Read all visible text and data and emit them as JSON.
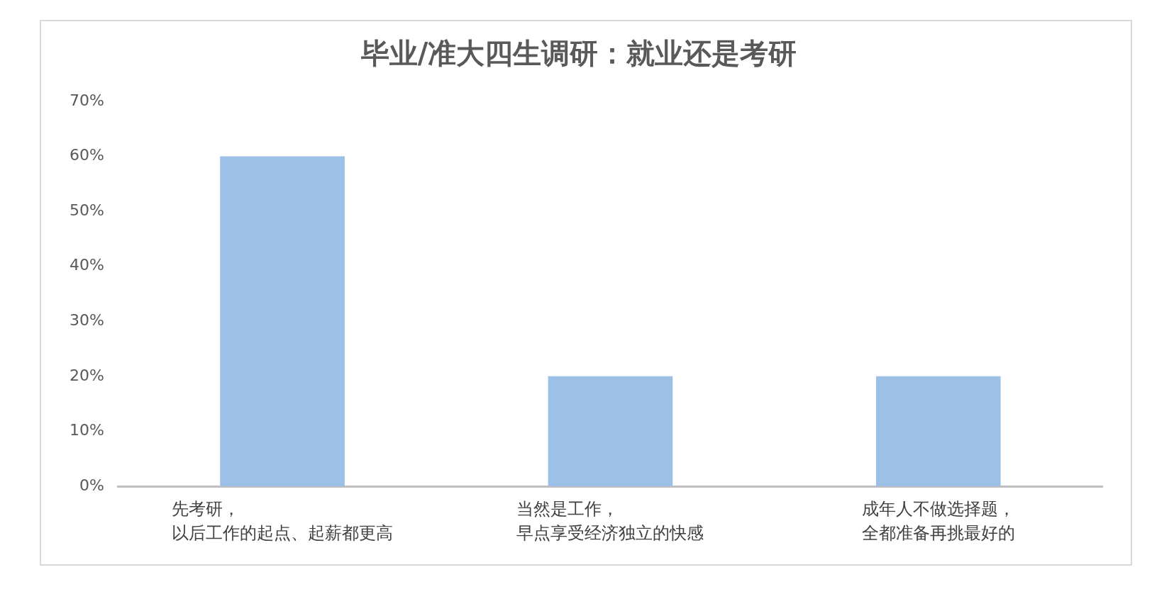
{
  "chart_data": {
    "type": "bar",
    "title": "毕业/准大四生调研：就业还是考研",
    "categories": [
      "先考研，以后工作的起点、起薪都更高",
      "当然是工作，早点享受经济独立的快感",
      "成年人不做选择题，全都准备再挑最好的"
    ],
    "values": [
      60,
      20,
      20
    ],
    "color": "#9dc1e6",
    "ylim": [
      0,
      70
    ],
    "yticks": [
      {
        "value": 0,
        "label": "0%"
      },
      {
        "value": 10,
        "label": "10%"
      },
      {
        "value": 20,
        "label": "20%"
      },
      {
        "value": 30,
        "label": "30%"
      },
      {
        "value": 40,
        "label": "40%"
      },
      {
        "value": 50,
        "label": "50%"
      },
      {
        "value": 60,
        "label": "60%"
      },
      {
        "value": 70,
        "label": "70%"
      }
    ],
    "grid": false,
    "legend": false
  }
}
